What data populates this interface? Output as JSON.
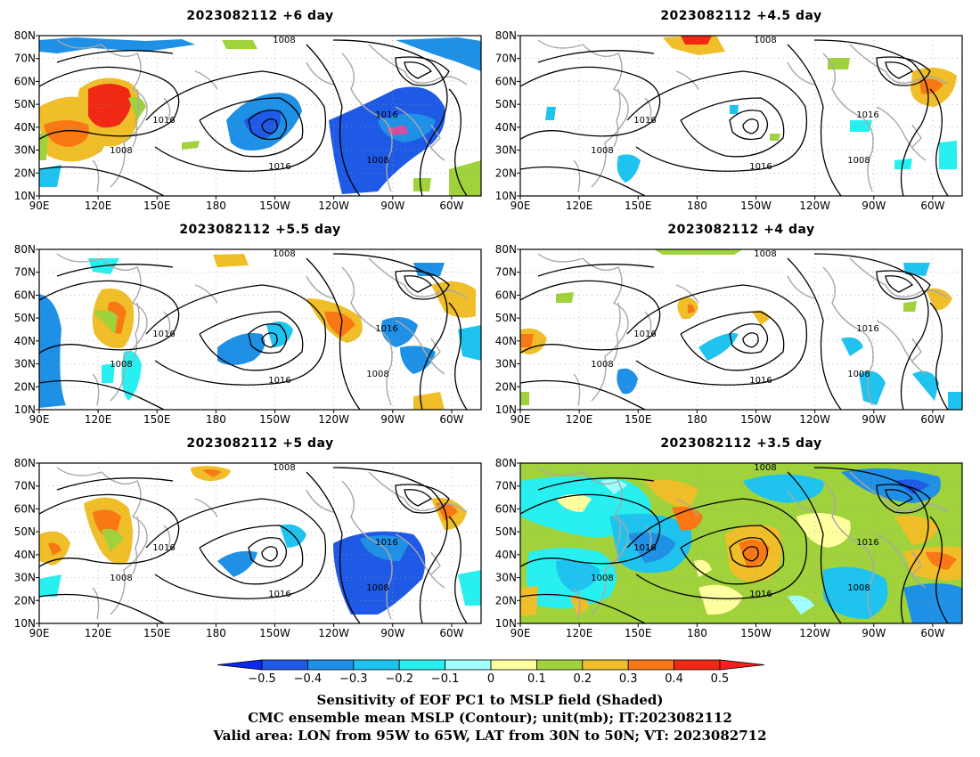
{
  "panels": [
    {
      "title": "2023082112  +6 day"
    },
    {
      "title": "2023082112  +4.5 day"
    },
    {
      "title": "2023082112  +5.5 day"
    },
    {
      "title": "2023082112  +4 day"
    },
    {
      "title": "2023082112  +5 day"
    },
    {
      "title": "2023082112  +3.5 day"
    }
  ],
  "axes": {
    "x_ticks": [
      "90E",
      "120E",
      "150E",
      "180",
      "150W",
      "120W",
      "90W",
      "60W"
    ],
    "y_ticks": [
      "80N",
      "70N",
      "60N",
      "50N",
      "40N",
      "30N",
      "20N",
      "10N"
    ],
    "lon_range": [
      "90E",
      "45W"
    ],
    "lat_range": [
      "10N",
      "80N"
    ]
  },
  "contour_labels": {
    "low": "1008",
    "high": "1016"
  },
  "colorbar": {
    "ticks": [
      "-0.5",
      "-0.4",
      "-0.3",
      "-0.2",
      "-0.1",
      "0",
      "0.1",
      "0.2",
      "0.3",
      "0.4",
      "0.5"
    ],
    "colors": [
      "#0a28f0",
      "#1e5ae6",
      "#1e90e6",
      "#1ec3f0",
      "#28f0f0",
      "#a0ffff",
      "#ffffa0",
      "#a0d23c",
      "#f0be28",
      "#fa7814",
      "#f02814",
      "#ff1e1e"
    ]
  },
  "caption": {
    "line1": "Sensitivity of EOF PC1 to MSLP field (Shaded)",
    "line2": "CMC ensemble mean MSLP (Contour); unit(mb); IT:2023082112",
    "line3": "Valid area: LON from 95W to 65W, LAT from 30N to 50N; VT: 2023082712"
  }
}
